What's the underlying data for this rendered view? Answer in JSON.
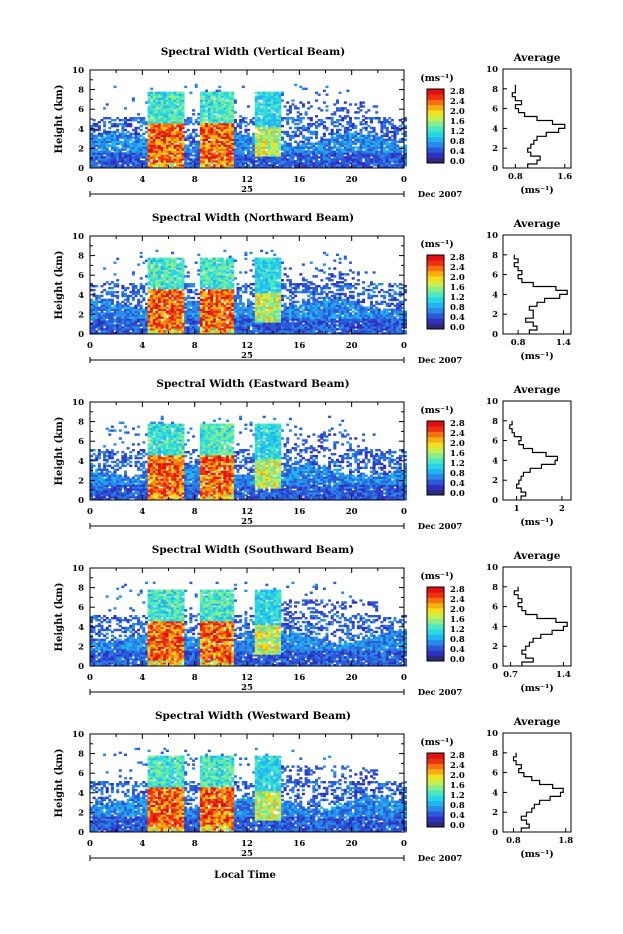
{
  "figure": {
    "shared_xlabel": "Local Time",
    "date_day": "25",
    "date_month_year": "Dec 2007"
  },
  "chart_data": [
    {
      "type": "heatmap",
      "title": "Spectral Width (Vertical Beam)",
      "xlabel": "",
      "ylabel": "Height (km)",
      "xlim": [
        0,
        24
      ],
      "ylim": [
        0,
        10
      ],
      "x_ticks": [
        "0",
        "4",
        "8",
        "12",
        "16",
        "20",
        "0"
      ],
      "y_ticks": [
        "0",
        "2",
        "4",
        "6",
        "8",
        "10"
      ],
      "colorbar": {
        "unit": "(ms⁻¹)",
        "ticks": [
          "0.0",
          "0.4",
          "0.8",
          "1.2",
          "1.6",
          "2.0",
          "2.4",
          "2.8"
        ],
        "range": [
          0,
          2.8
        ]
      },
      "average_profile": {
        "title": "Average",
        "xlabel": "(ms⁻¹)",
        "x_ticks": [
          "0.8",
          "1.6"
        ],
        "xlim": [
          0.6,
          1.7
        ],
        "y_ticks": [
          "0",
          "2",
          "4",
          "6",
          "8",
          "10"
        ],
        "ylim": [
          0,
          10
        ],
        "height_km": [
          0.2,
          0.6,
          1.0,
          1.4,
          1.8,
          2.2,
          2.6,
          3.0,
          3.4,
          3.8,
          4.2,
          4.6,
          5.0,
          5.4,
          5.8,
          6.2,
          6.6,
          7.0,
          7.4,
          7.8,
          8.2
        ],
        "width_ms": [
          1.0,
          1.15,
          1.2,
          1.05,
          1.0,
          1.05,
          1.1,
          1.15,
          1.3,
          1.5,
          1.6,
          1.4,
          1.15,
          0.95,
          0.85,
          0.8,
          0.9,
          0.8,
          0.75,
          0.8,
          0.8
        ]
      }
    },
    {
      "type": "heatmap",
      "title": "Spectral Width (Northward Beam)",
      "xlabel": "",
      "ylabel": "Height (km)",
      "xlim": [
        0,
        24
      ],
      "ylim": [
        0,
        10
      ],
      "x_ticks": [
        "0",
        "4",
        "8",
        "12",
        "16",
        "20",
        "0"
      ],
      "y_ticks": [
        "0",
        "2",
        "4",
        "6",
        "8",
        "10"
      ],
      "colorbar": {
        "unit": "(ms⁻¹)",
        "ticks": [
          "0.0",
          "0.4",
          "0.8",
          "1.2",
          "1.6",
          "2.0",
          "2.4",
          "2.8"
        ],
        "range": [
          0,
          2.8
        ]
      },
      "average_profile": {
        "title": "Average",
        "xlabel": "(ms⁻¹)",
        "x_ticks": [
          "0.8",
          "1.4"
        ],
        "xlim": [
          0.6,
          1.5
        ],
        "y_ticks": [
          "0",
          "2",
          "4",
          "6",
          "8",
          "10"
        ],
        "ylim": [
          0,
          10
        ],
        "height_km": [
          0.2,
          0.6,
          1.0,
          1.4,
          1.8,
          2.2,
          2.6,
          3.0,
          3.4,
          3.8,
          4.2,
          4.6,
          5.0,
          5.4,
          5.8,
          6.2,
          6.6,
          7.0,
          7.4,
          7.8
        ],
        "width_ms": [
          0.95,
          1.05,
          1.0,
          0.9,
          1.0,
          1.0,
          0.95,
          1.05,
          1.15,
          1.35,
          1.45,
          1.3,
          1.0,
          0.85,
          0.8,
          0.85,
          0.8,
          0.75,
          0.8,
          0.75
        ]
      }
    },
    {
      "type": "heatmap",
      "title": "Spectral Width (Eastward Beam)",
      "xlabel": "",
      "ylabel": "Height (km)",
      "xlim": [
        0,
        24
      ],
      "ylim": [
        0,
        10
      ],
      "x_ticks": [
        "0",
        "4",
        "8",
        "12",
        "16",
        "20",
        "0"
      ],
      "y_ticks": [
        "0",
        "2",
        "4",
        "6",
        "8",
        "10"
      ],
      "colorbar": {
        "unit": "(ms⁻¹)",
        "ticks": [
          "0.0",
          "0.4",
          "0.8",
          "1.2",
          "1.6",
          "2.0",
          "2.4",
          "2.8"
        ],
        "range": [
          0,
          2.8
        ]
      },
      "average_profile": {
        "title": "Average",
        "xlabel": "(ms⁻¹)",
        "x_ticks": [
          "1",
          "2"
        ],
        "xlim": [
          0.7,
          2.2
        ],
        "y_ticks": [
          "0",
          "2",
          "4",
          "6",
          "8",
          "10"
        ],
        "ylim": [
          0,
          10
        ],
        "height_km": [
          0.2,
          0.6,
          1.0,
          1.4,
          1.8,
          2.2,
          2.6,
          3.0,
          3.4,
          3.8,
          4.2,
          4.6,
          5.0,
          5.4,
          5.8,
          6.2,
          6.6,
          7.0,
          7.4,
          7.8
        ],
        "width_ms": [
          1.1,
          1.2,
          1.1,
          1.0,
          1.05,
          1.1,
          1.15,
          1.3,
          1.55,
          1.85,
          1.9,
          1.65,
          1.35,
          1.15,
          1.05,
          1.1,
          0.95,
          0.9,
          0.85,
          0.9
        ]
      }
    },
    {
      "type": "heatmap",
      "title": "Spectral Width (Southward Beam)",
      "xlabel": "",
      "ylabel": "Height (km)",
      "xlim": [
        0,
        24
      ],
      "ylim": [
        0,
        10
      ],
      "x_ticks": [
        "0",
        "4",
        "8",
        "12",
        "16",
        "20",
        "0"
      ],
      "y_ticks": [
        "0",
        "2",
        "4",
        "6",
        "8",
        "10"
      ],
      "colorbar": {
        "unit": "(ms⁻¹)",
        "ticks": [
          "0.0",
          "0.4",
          "0.8",
          "1.2",
          "1.6",
          "2.0",
          "2.4",
          "2.8"
        ],
        "range": [
          0,
          2.8
        ]
      },
      "average_profile": {
        "title": "Average",
        "xlabel": "(ms⁻¹)",
        "x_ticks": [
          "0.7",
          "1.4"
        ],
        "xlim": [
          0.6,
          1.5
        ],
        "y_ticks": [
          "0",
          "2",
          "4",
          "6",
          "8",
          "10"
        ],
        "ylim": [
          0,
          10
        ],
        "height_km": [
          0.2,
          0.6,
          1.0,
          1.4,
          1.8,
          2.2,
          2.6,
          3.0,
          3.4,
          3.8,
          4.2,
          4.6,
          5.0,
          5.4,
          5.8,
          6.2,
          6.6,
          7.0,
          7.4,
          7.8
        ],
        "width_ms": [
          0.85,
          1.0,
          0.9,
          0.85,
          0.9,
          0.95,
          1.0,
          1.1,
          1.25,
          1.4,
          1.45,
          1.3,
          1.05,
          0.9,
          0.85,
          0.8,
          0.85,
          0.8,
          0.75,
          0.8
        ]
      }
    },
    {
      "type": "heatmap",
      "title": "Spectral Width (Westward Beam)",
      "xlabel": "Local Time",
      "ylabel": "Height (km)",
      "xlim": [
        0,
        24
      ],
      "ylim": [
        0,
        10
      ],
      "x_ticks": [
        "0",
        "4",
        "8",
        "12",
        "16",
        "20",
        "0"
      ],
      "y_ticks": [
        "0",
        "2",
        "4",
        "6",
        "8",
        "10"
      ],
      "colorbar": {
        "unit": "(ms⁻¹)",
        "ticks": [
          "0.0",
          "0.4",
          "0.8",
          "1.2",
          "1.6",
          "2.0",
          "2.4",
          "2.8"
        ],
        "range": [
          0,
          2.8
        ]
      },
      "average_profile": {
        "title": "Average",
        "xlabel": "(ms⁻¹)",
        "x_ticks": [
          "0.8",
          "1.8"
        ],
        "xlim": [
          0.6,
          1.9
        ],
        "y_ticks": [
          "0",
          "2",
          "4",
          "6",
          "8",
          "10"
        ],
        "ylim": [
          0,
          10
        ],
        "height_km": [
          0.2,
          0.6,
          1.0,
          1.4,
          1.8,
          2.2,
          2.6,
          3.0,
          3.4,
          3.8,
          4.2,
          4.6,
          5.0,
          5.4,
          5.8,
          6.2,
          6.6,
          7.0,
          7.4,
          7.8
        ],
        "width_ms": [
          0.95,
          1.1,
          1.05,
          0.95,
          1.05,
          1.15,
          1.2,
          1.3,
          1.5,
          1.7,
          1.75,
          1.55,
          1.3,
          1.15,
          1.0,
          0.9,
          0.95,
          0.85,
          0.8,
          0.85
        ]
      }
    }
  ],
  "colormap": [
    "#2b2b7a",
    "#3030c0",
    "#2a5ad8",
    "#2a8ae8",
    "#22b4f0",
    "#28d6e6",
    "#4ee8c0",
    "#8aee8a",
    "#c8ee50",
    "#f0e020",
    "#f8b010",
    "#f87010",
    "#f03010",
    "#e01010"
  ]
}
